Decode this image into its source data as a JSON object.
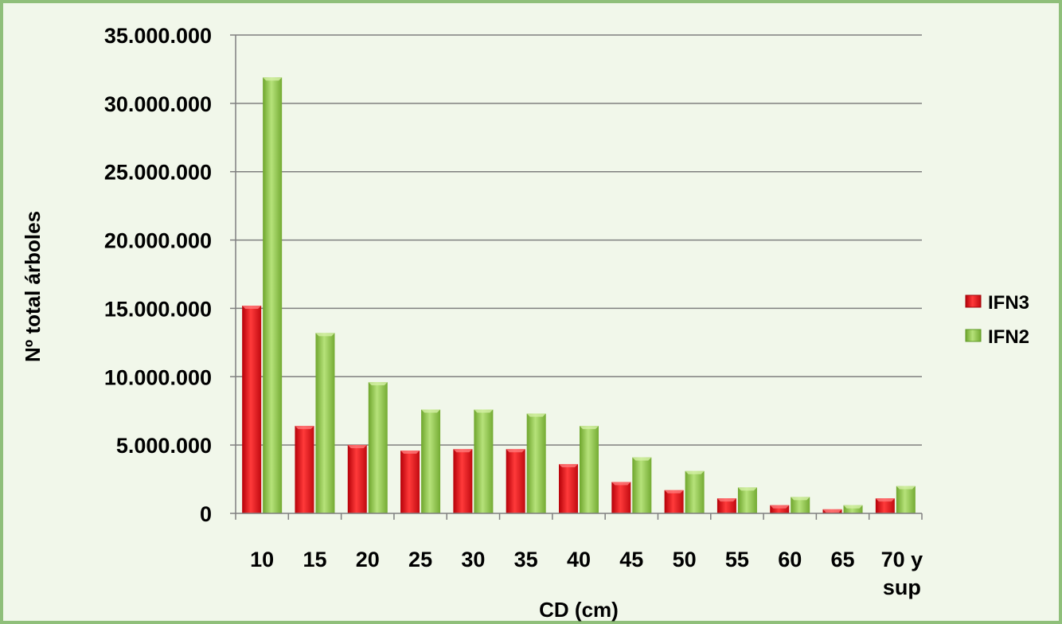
{
  "chart_data": {
    "type": "bar",
    "title": "",
    "xlabel": "CD (cm)",
    "ylabel": "Nº total árboles",
    "categories": [
      "10",
      "15",
      "20",
      "25",
      "30",
      "35",
      "40",
      "45",
      "50",
      "55",
      "60",
      "65",
      "70 y sup"
    ],
    "series": [
      {
        "name": "IFN3",
        "color": "#e8121a",
        "values": [
          15200000,
          6400000,
          5000000,
          4600000,
          4700000,
          4700000,
          3600000,
          2300000,
          1700000,
          1100000,
          600000,
          300000,
          1100000
        ]
      },
      {
        "name": "IFN2",
        "color": "#8cc63e",
        "values": [
          31900000,
          13200000,
          9600000,
          7600000,
          7600000,
          7300000,
          6400000,
          4100000,
          3100000,
          1900000,
          1200000,
          600000,
          2000000
        ]
      }
    ],
    "ylim": [
      0,
      35000000
    ],
    "yticks": [
      "0",
      "5.000.000",
      "10.000.000",
      "15.000.000",
      "20.000.000",
      "25.000.000",
      "30.000.000",
      "35.000.000"
    ],
    "grid": true,
    "legend_position": "right"
  }
}
